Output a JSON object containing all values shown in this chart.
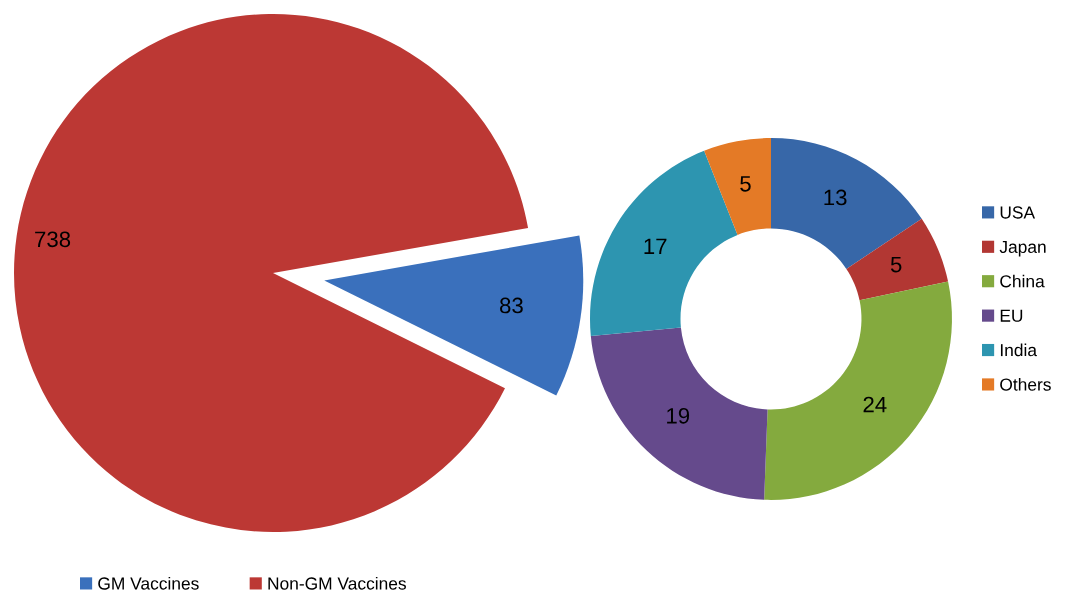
{
  "chart_data": [
    {
      "type": "pie",
      "categories": [
        "GM Vaccines",
        "Non-GM Vaccines"
      ],
      "values": [
        83,
        738
      ],
      "colors": [
        "#3a70bc",
        "#bc3834"
      ],
      "data_labels": true,
      "legend": "bottom"
    },
    {
      "type": "donut",
      "categories": [
        "USA",
        "Japan",
        "China",
        "EU",
        "India",
        "Others"
      ],
      "values": [
        13,
        5,
        24,
        19,
        17,
        5
      ],
      "colors": [
        "#3767a8",
        "#b23733",
        "#84aa3e",
        "#654a8c",
        "#2d95b0",
        "#e47a26"
      ],
      "data_labels": true,
      "legend": "right"
    }
  ]
}
